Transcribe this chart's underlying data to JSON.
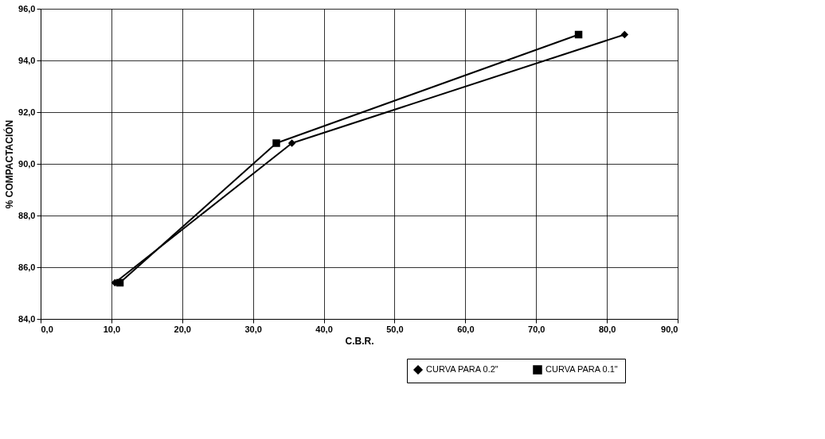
{
  "chart_data": {
    "type": "line",
    "xlabel": "C.B.R.",
    "ylabel": "% COMPACTACIÓN",
    "series": [
      {
        "name": "CURVA PARA 0.2\"",
        "color": "#000000",
        "marker": "diamond",
        "x": [
          10.5,
          35.5,
          82.5
        ],
        "values": [
          85.4,
          90.8,
          95.0
        ]
      },
      {
        "name": "CURVA PARA 0.1\"",
        "color": "#000000",
        "marker": "square",
        "x": [
          11.2,
          33.3,
          76.0
        ],
        "values": [
          85.4,
          90.8,
          95.0
        ]
      }
    ],
    "xlim": [
      0,
      90
    ],
    "ylim": [
      84,
      96
    ],
    "xticks": [
      {
        "value": 0,
        "label": "0,0"
      },
      {
        "value": 10,
        "label": "10,0"
      },
      {
        "value": 20,
        "label": "20,0"
      },
      {
        "value": 30,
        "label": "30,0"
      },
      {
        "value": 40,
        "label": "40,0"
      },
      {
        "value": 50,
        "label": "50,0"
      },
      {
        "value": 60,
        "label": "60,0"
      },
      {
        "value": 70,
        "label": "70,0"
      },
      {
        "value": 80,
        "label": "80,0"
      },
      {
        "value": 90,
        "label": "90,0"
      }
    ],
    "yticks": [
      {
        "value": 84,
        "label": "84,0"
      },
      {
        "value": 86,
        "label": "86,0"
      },
      {
        "value": 88,
        "label": "88,0"
      },
      {
        "value": 90,
        "label": "90,0"
      },
      {
        "value": 92,
        "label": "92,0"
      },
      {
        "value": 94,
        "label": "94,0"
      },
      {
        "value": 96,
        "label": "96,0"
      }
    ],
    "grid": true,
    "legend": "bottom right",
    "line_style": "solid"
  }
}
